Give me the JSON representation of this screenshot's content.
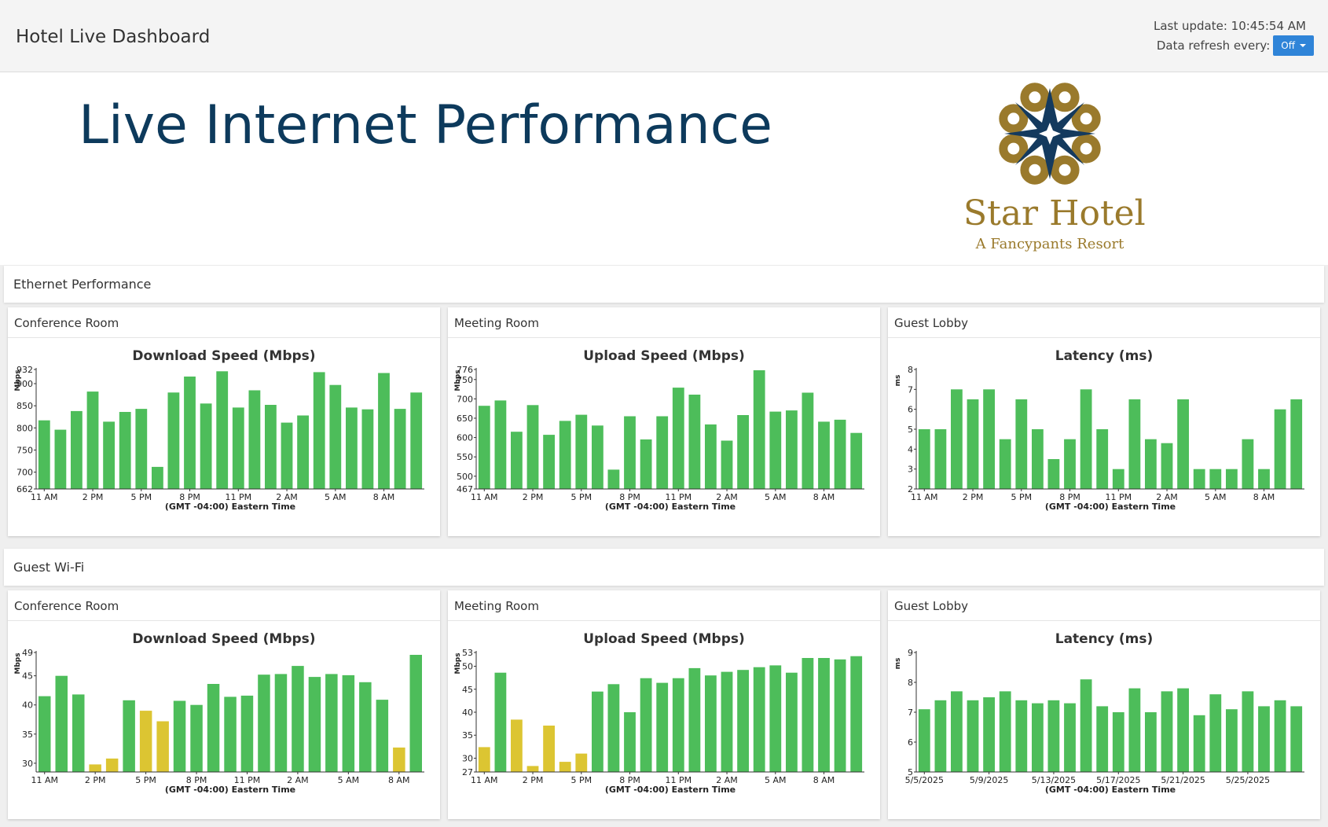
{
  "header": {
    "app_title": "Hotel Live Dashboard",
    "last_update": "Last update: 10:45:54 AM",
    "refresh_label": "Data refresh every:",
    "refresh_value": "Off"
  },
  "hero": {
    "title": "Live Internet Performance",
    "logo_name": "Star Hotel",
    "logo_tagline": "A Fancypants Resort"
  },
  "colors": {
    "green": "#4dbd5a",
    "yellow": "#dcc532",
    "title_blue": "#0d3a5c",
    "gold": "#9a7a2c",
    "button_blue": "#2f84d8"
  },
  "sections": [
    {
      "title": "Ethernet Performance",
      "panels": [
        {
          "title": "Conference Room",
          "chart_index": 0
        },
        {
          "title": "Meeting Room",
          "chart_index": 1
        },
        {
          "title": "Guest Lobby",
          "chart_index": 2
        }
      ]
    },
    {
      "title": "Guest Wi-Fi",
      "panels": [
        {
          "title": "Conference Room",
          "chart_index": 3
        },
        {
          "title": "Meeting Room",
          "chart_index": 4
        },
        {
          "title": "Guest Lobby",
          "chart_index": 5
        }
      ]
    }
  ],
  "chart_data": [
    {
      "type": "bar",
      "title": "Download Speed (Mbps)",
      "ylabel": "Mbps",
      "xlabel": "(GMT -04:00) Eastern Time",
      "ylim": [
        662,
        932
      ],
      "yticks": [
        "662",
        "700",
        "750",
        "800",
        "850",
        "900",
        "932"
      ],
      "xticks": [
        "11 AM",
        "2 PM",
        "5 PM",
        "8 PM",
        "11 PM",
        "2 AM",
        "5 AM",
        "8 AM"
      ],
      "tick_every": 3,
      "values": [
        817,
        796,
        838,
        882,
        814,
        836,
        843,
        712,
        880,
        916,
        855,
        928,
        846,
        885,
        852,
        812,
        828,
        926,
        897,
        846,
        842,
        924,
        843,
        880
      ],
      "status": [
        "g",
        "g",
        "g",
        "g",
        "g",
        "g",
        "g",
        "g",
        "g",
        "g",
        "g",
        "g",
        "g",
        "g",
        "g",
        "g",
        "g",
        "g",
        "g",
        "g",
        "g",
        "g",
        "g",
        "g"
      ]
    },
    {
      "type": "bar",
      "title": "Upload Speed (Mbps)",
      "ylabel": "Mbps",
      "xlabel": "(GMT -04:00) Eastern Time",
      "ylim": [
        467,
        776
      ],
      "yticks": [
        "467",
        "500",
        "550",
        "600",
        "650",
        "700",
        "750",
        "776"
      ],
      "xticks": [
        "11 AM",
        "2 PM",
        "5 PM",
        "8 PM",
        "11 PM",
        "2 AM",
        "5 AM",
        "8 AM"
      ],
      "tick_every": 3,
      "values": [
        682,
        696,
        615,
        684,
        607,
        643,
        659,
        631,
        517,
        655,
        595,
        655,
        729,
        711,
        634,
        592,
        658,
        774,
        667,
        670,
        716,
        641,
        646,
        612
      ],
      "status": [
        "g",
        "g",
        "g",
        "g",
        "g",
        "g",
        "g",
        "g",
        "g",
        "g",
        "g",
        "g",
        "g",
        "g",
        "g",
        "g",
        "g",
        "g",
        "g",
        "g",
        "g",
        "g",
        "g",
        "g"
      ]
    },
    {
      "type": "bar",
      "title": "Latency (ms)",
      "ylabel": "ms",
      "xlabel": "(GMT -04:00) Eastern Time",
      "ylim": [
        2,
        8
      ],
      "yticks": [
        "2",
        "3",
        "4",
        "5",
        "6",
        "7",
        "8"
      ],
      "xticks": [
        "11 AM",
        "2 PM",
        "5 PM",
        "8 PM",
        "11 PM",
        "2 AM",
        "5 AM",
        "8 AM"
      ],
      "tick_every": 3,
      "values": [
        5,
        5,
        7,
        6.5,
        7,
        4.5,
        6.5,
        5,
        3.5,
        4.5,
        7,
        5,
        3,
        6.5,
        4.5,
        4.3,
        6.5,
        3,
        3,
        3,
        4.5,
        3,
        6,
        6.5
      ],
      "status": [
        "g",
        "g",
        "g",
        "g",
        "g",
        "g",
        "g",
        "g",
        "g",
        "g",
        "g",
        "g",
        "g",
        "g",
        "g",
        "g",
        "g",
        "g",
        "g",
        "g",
        "g",
        "g",
        "g",
        "g"
      ]
    },
    {
      "type": "bar",
      "title": "Download Speed (Mbps)",
      "ylabel": "Mbps",
      "xlabel": "(GMT -04:00) Eastern Time",
      "ylim": [
        28.5,
        49
      ],
      "yticks": [
        "30",
        "35",
        "40",
        "45",
        "49"
      ],
      "xticks": [
        "11 AM",
        "2 PM",
        "5 PM",
        "8 PM",
        "11 PM",
        "2 AM",
        "5 AM",
        "8 AM"
      ],
      "tick_every": 3,
      "values": [
        41.5,
        45,
        41.8,
        29.8,
        30.8,
        40.8,
        39,
        37.2,
        40.7,
        40,
        43.6,
        41.4,
        41.6,
        45.2,
        45.3,
        46.7,
        44.8,
        45.3,
        45.1,
        43.9,
        40.9,
        32.7,
        48.6
      ],
      "status": [
        "g",
        "g",
        "g",
        "y",
        "y",
        "g",
        "y",
        "y",
        "g",
        "g",
        "g",
        "g",
        "g",
        "g",
        "g",
        "g",
        "g",
        "g",
        "g",
        "g",
        "g",
        "y",
        "g"
      ]
    },
    {
      "type": "bar",
      "title": "Upload Speed (Mbps)",
      "ylabel": "Mbps",
      "xlabel": "(GMT -04:00) Eastern Time",
      "ylim": [
        27,
        53
      ],
      "yticks": [
        "27",
        "30",
        "35",
        "40",
        "45",
        "50",
        "53"
      ],
      "xticks": [
        "11 AM",
        "2 PM",
        "5 PM",
        "8 PM",
        "11 PM",
        "2 AM",
        "5 AM",
        "8 AM"
      ],
      "tick_every": 3,
      "values": [
        32.4,
        48.6,
        38.4,
        28.3,
        37.1,
        29.2,
        31,
        44.5,
        46.1,
        40,
        47.4,
        46.4,
        47.4,
        49.6,
        48,
        48.8,
        49.2,
        49.8,
        50.2,
        48.6,
        51.8,
        51.8,
        51.5,
        52.2
      ],
      "status": [
        "y",
        "g",
        "y",
        "y",
        "y",
        "y",
        "y",
        "g",
        "g",
        "g",
        "g",
        "g",
        "g",
        "g",
        "g",
        "g",
        "g",
        "g",
        "g",
        "g",
        "g",
        "g",
        "g",
        "g"
      ]
    },
    {
      "type": "bar",
      "title": "Latency (ms)",
      "ylabel": "ms",
      "xlabel": "(GMT -04:00) Eastern Time",
      "ylim": [
        5,
        9
      ],
      "yticks": [
        "5",
        "6",
        "7",
        "8",
        "9"
      ],
      "xticks": [
        "5/5/2025",
        "5/9/2025",
        "5/13/2025",
        "5/17/2025",
        "5/21/2025",
        "5/25/2025"
      ],
      "tick_every": 4,
      "values": [
        7.1,
        7.4,
        7.7,
        7.4,
        7.5,
        7.7,
        7.4,
        7.3,
        7.4,
        7.3,
        8.1,
        7.2,
        7.0,
        7.8,
        7.0,
        7.7,
        7.8,
        6.9,
        7.6,
        7.1,
        7.7,
        7.2,
        7.4,
        7.2
      ],
      "status": [
        "g",
        "g",
        "g",
        "g",
        "g",
        "g",
        "g",
        "g",
        "g",
        "g",
        "g",
        "g",
        "g",
        "g",
        "g",
        "g",
        "g",
        "g",
        "g",
        "g",
        "g",
        "g",
        "g",
        "g"
      ]
    }
  ]
}
